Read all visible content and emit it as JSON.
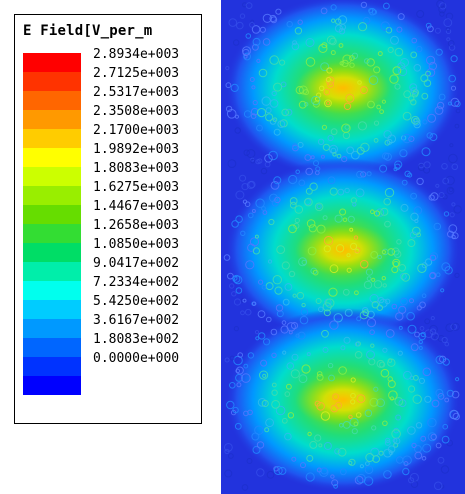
{
  "legend": {
    "title": "E Field[V_per_m",
    "labels": [
      "2.8934e+003",
      "2.7125e+003",
      "2.5317e+003",
      "2.3508e+003",
      "2.1700e+003",
      "1.9892e+003",
      "1.8083e+003",
      "1.6275e+003",
      "1.4467e+003",
      "1.2658e+003",
      "1.0850e+003",
      "9.0417e+002",
      "7.2334e+002",
      "5.4250e+002",
      "3.6167e+002",
      "1.8083e+002",
      "0.0000e+000"
    ],
    "colors": [
      "#ff0000",
      "#ff3300",
      "#ff6600",
      "#ff9900",
      "#ffcc00",
      "#ffff00",
      "#ccff00",
      "#99ee00",
      "#66dd00",
      "#33dd33",
      "#00dd66",
      "#00eeaa",
      "#00ffee",
      "#00ccff",
      "#0099ff",
      "#0066ff",
      "#0033ff",
      "#0000ff"
    ]
  }
}
